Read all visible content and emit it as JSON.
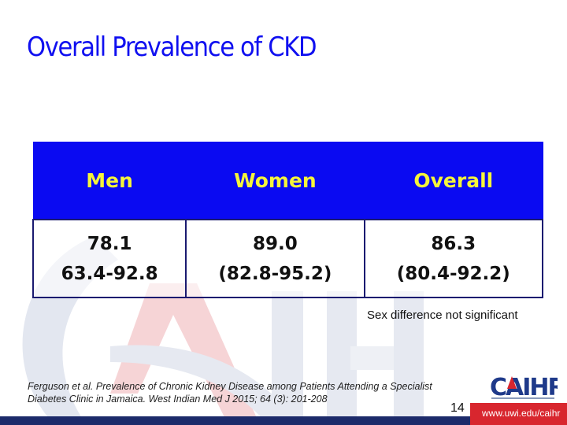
{
  "slide": {
    "title": "Overall Prevalence of CKD",
    "table": {
      "headers": [
        "Men",
        "Women",
        "Overall"
      ],
      "rows": [
        {
          "estimate": "78.1",
          "ci": "63.4-92.8"
        },
        {
          "estimate": "89.0",
          "ci": "(82.8-95.2)"
        },
        {
          "estimate": "86.3",
          "ci": "(80.4-92.2)"
        }
      ]
    },
    "note": "Sex difference not significant",
    "citation": {
      "line1": "Ferguson et al. Prevalence of Chronic Kidney Disease among Patients Attending a Specialist",
      "line2": "Diabetes Clinic in Jamaica. West Indian Med J 2015; 64 (3): 201-208"
    },
    "page_number": "14",
    "footer_url": "www.uwi.edu/caihr",
    "logo_text": "CAIHR"
  },
  "colors": {
    "title": "#1010f0",
    "header_bg": "#0a0af2",
    "header_text": "#f5f53a",
    "footer_bar": "#1c2a6a",
    "footer_red": "#d8262e"
  }
}
